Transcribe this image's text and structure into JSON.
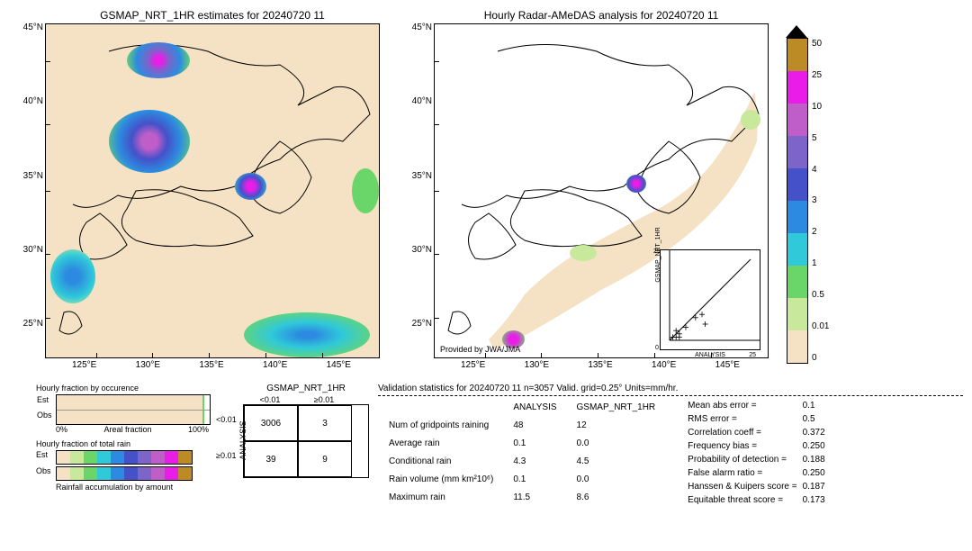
{
  "maps": {
    "left_title": "GSMAP_NRT_1HR estimates for 20240720 11",
    "right_title": "Hourly Radar-AMeDAS analysis for 20240720 11",
    "provided_by": "Provided by JWA/JMA",
    "lat_ticks": [
      "45°N",
      "40°N",
      "35°N",
      "30°N",
      "25°N"
    ],
    "lon_ticks": [
      "125°E",
      "130°E",
      "135°E",
      "140°E",
      "145°E"
    ],
    "bg_color": "#f5e2c4",
    "extent": {
      "lon_min": 120,
      "lon_max": 150,
      "lat_min": 22,
      "lat_max": 48
    }
  },
  "colorbar": {
    "labels": [
      "50",
      "25",
      "10",
      "5",
      "4",
      "3",
      "2",
      "1",
      "0.5",
      "0.01",
      "0"
    ],
    "colors_top_to_bottom": [
      "#bc8b25",
      "#e81de8",
      "#c05ec9",
      "#7c64c9",
      "#4551c9",
      "#2c8be0",
      "#2fc9d9",
      "#6ad66a",
      "#c8e89b",
      "#f5e2c4"
    ]
  },
  "fraction_occurrence": {
    "title": "Hourly fraction by occurence",
    "rows": [
      "Est",
      "Obs"
    ],
    "est_pct": 95,
    "obs_pct": 95,
    "axis_left": "0%",
    "axis_center": "Areal fraction",
    "axis_right": "100%"
  },
  "fraction_total_rain": {
    "title": "Hourly fraction of total rain",
    "rows": [
      "Est",
      "Obs"
    ]
  },
  "rainfall_accum": {
    "title": "Rainfall accumulation by amount",
    "colors": [
      "#f5e2c4",
      "#c8e89b",
      "#6ad66a",
      "#2fc9d9",
      "#2c8be0",
      "#4551c9",
      "#7c64c9",
      "#c05ec9",
      "#e81de8",
      "#bc8b25"
    ]
  },
  "contingency": {
    "title": "GSMAP_NRT_1HR",
    "col_labels": [
      "<0.01",
      "≥0.01"
    ],
    "row_labels": [
      "<0.01",
      "≥0.01"
    ],
    "side_title": "ANALYSIS",
    "cells": [
      [
        "3006",
        "3"
      ],
      [
        "39",
        "9"
      ]
    ]
  },
  "inset": {
    "y_label": "GSMAP_NRT_1HR",
    "x_label": "ANALYSIS",
    "ticks": [
      "0",
      "5",
      "10",
      "15",
      "20",
      "25"
    ],
    "points": [
      [
        1,
        1
      ],
      [
        2,
        3
      ],
      [
        3,
        2
      ],
      [
        5,
        4
      ],
      [
        8,
        7
      ],
      [
        10,
        8
      ],
      [
        11,
        5
      ],
      [
        3,
        1
      ],
      [
        2,
        1
      ]
    ]
  },
  "validation": {
    "title": "Validation statistics for 20240720 11  n=3057 Valid. grid=0.25° Units=mm/hr.",
    "col_headers": [
      "",
      "ANALYSIS",
      "GSMAP_NRT_1HR"
    ],
    "rows": [
      [
        "Num of gridpoints raining",
        "48",
        "12"
      ],
      [
        "Average rain",
        "0.1",
        "0.0"
      ],
      [
        "Conditional rain",
        "4.3",
        "4.5"
      ],
      [
        "Rain volume (mm km²10⁶)",
        "0.1",
        "0.0"
      ],
      [
        "Maximum rain",
        "11.5",
        "8.6"
      ]
    ],
    "metrics": [
      [
        "Mean abs error =",
        "0.1"
      ],
      [
        "RMS error =",
        "0.5"
      ],
      [
        "Correlation coeff =",
        "0.372"
      ],
      [
        "Frequency bias =",
        "0.250"
      ],
      [
        "Probability of detection =",
        "0.188"
      ],
      [
        "False alarm ratio =",
        "0.250"
      ],
      [
        "Hanssen & Kuipers score =",
        "0.187"
      ],
      [
        "Equitable threat score =",
        "0.173"
      ]
    ]
  }
}
